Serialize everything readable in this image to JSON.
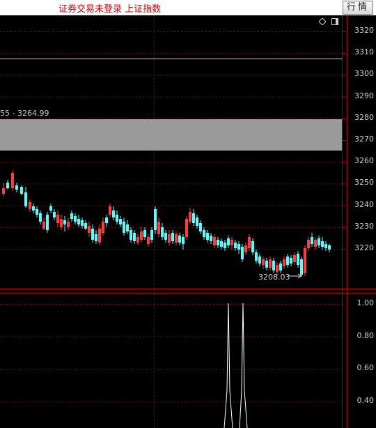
{
  "topbar": {
    "title": "证券交易未登录  上证指数",
    "button_label": "行情"
  },
  "main_chart": {
    "range_label": "55 - 3264.99",
    "low_label": "3208.03",
    "y_axis_ticks": [
      "3320",
      "3310",
      "3300",
      "3290",
      "3280",
      "3270",
      "3260",
      "3250",
      "3240",
      "3230",
      "3220"
    ],
    "colors": {
      "up": "#ff3c3c",
      "down": "#54ffff",
      "grid": "#8b0000",
      "band": "#9a9a9a"
    }
  },
  "sub_chart": {
    "y_axis_ticks": [
      "1.00",
      "0.80",
      "0.60",
      "0.40"
    ]
  },
  "icons": {
    "diamond": "diamond-icon",
    "box": "panel-toggle-icon"
  }
}
